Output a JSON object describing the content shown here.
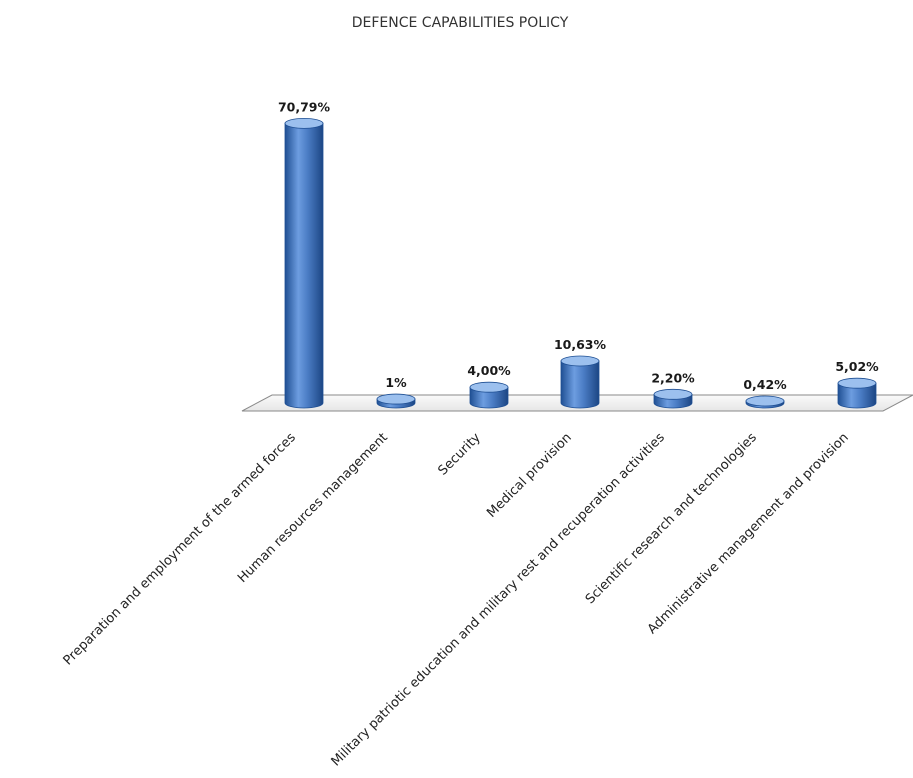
{
  "chart_data": {
    "type": "bar",
    "title": "DEFENCE CAPABILITIES POLICY",
    "xlabel": "",
    "ylabel": "",
    "ylim": [
      0,
      100
    ],
    "grid": false,
    "legend": "none",
    "categories": [
      "Preparation and employment of the armed forces",
      "Human resources management",
      "Security",
      "Medical provision",
      "Military patriotic education and military rest and recuperation activities",
      "Scientific research and technologies",
      "Administrative management and provision"
    ],
    "values": [
      70.79,
      1,
      4.0,
      10.63,
      2.2,
      0.42,
      5.02
    ],
    "data_labels": [
      "70,79%",
      "1%",
      "4,00%",
      "10,63%",
      "2,20%",
      "0,42%",
      "5,02%"
    ],
    "colors": {
      "bar": "#4a7cc4",
      "bar_dark": "#1f4f93",
      "bar_light": "#9cc0ee",
      "floor": "#f1f1f1",
      "floor_edge": "#8a8a8a"
    }
  }
}
